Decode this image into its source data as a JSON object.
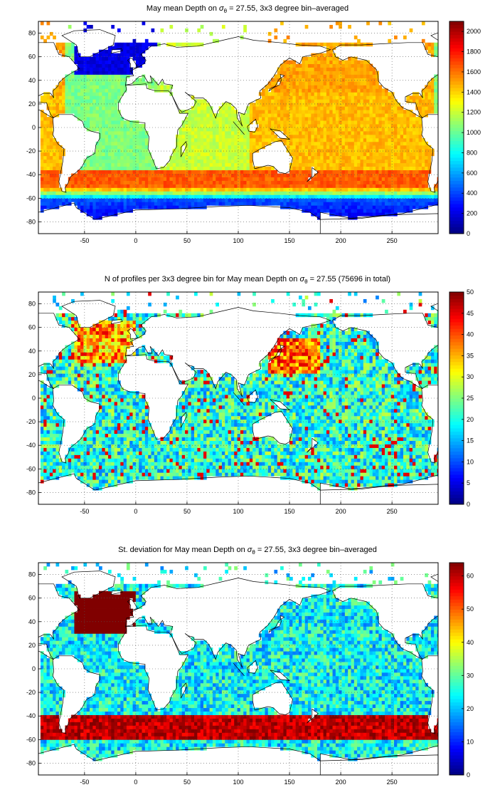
{
  "chart_data": [
    {
      "type": "heatmap",
      "title_pre": "May mean Depth on ",
      "title_sigma": "σ",
      "title_sub": "θ",
      "title_post": " = 27.55, 3x3 degree bin–averaged",
      "xlim": [
        -95,
        295
      ],
      "ylim": [
        -90,
        90
      ],
      "xticks": [
        -50,
        0,
        50,
        100,
        150,
        200,
        250
      ],
      "yticks": [
        -80,
        -60,
        -40,
        -20,
        0,
        20,
        40,
        60,
        80
      ],
      "grid": true,
      "colormap": "jet",
      "colorbar": {
        "min": 0,
        "max": 2100,
        "ticks": [
          0,
          200,
          400,
          600,
          800,
          1000,
          1200,
          1400,
          1600,
          1800,
          2000
        ],
        "placement": "right"
      },
      "cell_size_deg": 3,
      "variable": "depth"
    },
    {
      "type": "heatmap",
      "title_pre": "N of profiles per 3x3 degree bin for May mean Depth on ",
      "title_sigma": "σ",
      "title_sub": "θ",
      "title_post": " = 27.55 (75696 in total)",
      "xlim": [
        -95,
        295
      ],
      "ylim": [
        -90,
        90
      ],
      "xticks": [
        -50,
        0,
        50,
        100,
        150,
        200,
        250
      ],
      "yticks": [
        -80,
        -60,
        -40,
        -20,
        0,
        20,
        40,
        60,
        80
      ],
      "grid": true,
      "colormap": "jet",
      "colorbar": {
        "min": 0,
        "max": 50,
        "ticks": [
          0,
          5,
          10,
          15,
          20,
          25,
          30,
          35,
          40,
          45,
          50
        ],
        "placement": "right"
      },
      "cell_size_deg": 3,
      "variable": "count"
    },
    {
      "type": "heatmap",
      "title_pre": "St. deviation for May mean Depth on ",
      "title_sigma": "σ",
      "title_sub": "θ",
      "title_post": " = 27.55, 3x3 degree bin–averaged",
      "xlim": [
        -95,
        295
      ],
      "ylim": [
        -90,
        90
      ],
      "xticks": [
        -50,
        0,
        50,
        100,
        150,
        200,
        250
      ],
      "yticks": [
        -80,
        -60,
        -40,
        -20,
        0,
        20,
        40,
        60,
        80
      ],
      "grid": true,
      "colormap": "jet",
      "colorbar": {
        "min": 0,
        "max": 64,
        "ticks": [
          0,
          10,
          20,
          30,
          40,
          50,
          60
        ],
        "placement": "right"
      },
      "cell_size_deg": 3,
      "variable": "stdev"
    }
  ]
}
